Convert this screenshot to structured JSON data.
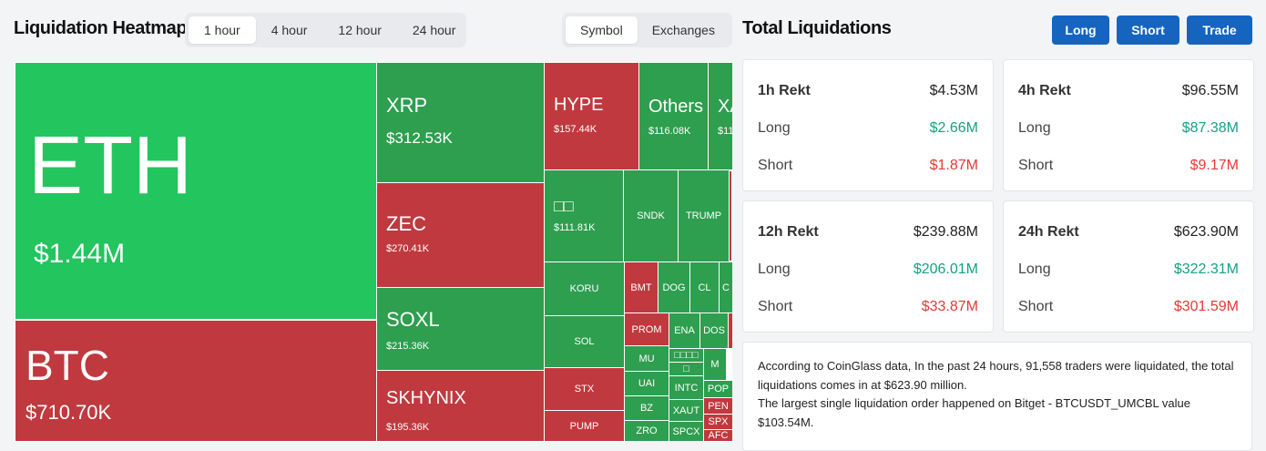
{
  "heatmap": {
    "title": "Liquidation Heatmap",
    "timeframes": [
      "1 hour",
      "4 hour",
      "12 hour",
      "24 hour"
    ],
    "active_timeframe": "1 hour",
    "views": [
      "Symbol",
      "Exchanges"
    ],
    "active_view": "Symbol",
    "colors": {
      "long_dominant": "#2e9e4f",
      "highlight_long": "#22c55e",
      "short_dominant": "#c0393e"
    },
    "tiles": [
      {
        "symbol": "ETH",
        "value": "$1.44M",
        "color": "highlight_long"
      },
      {
        "symbol": "BTC",
        "value": "$710.70K",
        "color": "short_dominant"
      },
      {
        "symbol": "XRP",
        "value": "$312.53K",
        "color": "long_dominant"
      },
      {
        "symbol": "ZEC",
        "value": "$270.41K",
        "color": "short_dominant"
      },
      {
        "symbol": "SOXL",
        "value": "$215.36K",
        "color": "long_dominant"
      },
      {
        "symbol": "SKHYNIX",
        "value": "$195.36K",
        "color": "short_dominant"
      },
      {
        "symbol": "HYPE",
        "value": "$157.44K",
        "color": "short_dominant"
      },
      {
        "symbol": "Others",
        "value": "$116.08K",
        "color": "long_dominant"
      },
      {
        "symbol": "XA",
        "value": "$11",
        "color": "long_dominant"
      },
      {
        "symbol": "",
        "value": "",
        "color": "short_dominant"
      },
      {
        "symbol": "□□",
        "value": "$111.81K",
        "color": "long_dominant"
      },
      {
        "symbol": "SNDK",
        "value": "",
        "color": "long_dominant"
      },
      {
        "symbol": "TRUMP",
        "value": "",
        "color": "long_dominant"
      },
      {
        "symbol": "KORU",
        "value": "",
        "color": "long_dominant"
      },
      {
        "symbol": "BMT",
        "value": "",
        "color": "short_dominant"
      },
      {
        "symbol": "DOG",
        "value": "",
        "color": "long_dominant"
      },
      {
        "symbol": "CL",
        "value": "",
        "color": "long_dominant"
      },
      {
        "symbol": "C",
        "value": "",
        "color": "long_dominant"
      },
      {
        "symbol": "SOL",
        "value": "",
        "color": "long_dominant"
      },
      {
        "symbol": "PROM",
        "value": "",
        "color": "short_dominant"
      },
      {
        "symbol": "ENA",
        "value": "",
        "color": "long_dominant"
      },
      {
        "symbol": "DOS",
        "value": "",
        "color": "long_dominant"
      },
      {
        "symbol": "",
        "value": "",
        "color": "short_dominant"
      },
      {
        "symbol": "MU",
        "value": "",
        "color": "long_dominant"
      },
      {
        "symbol": "□□□□",
        "value": "",
        "color": "long_dominant"
      },
      {
        "symbol": "□",
        "value": "",
        "color": "long_dominant"
      },
      {
        "symbol": "M",
        "value": "",
        "color": "long_dominant"
      },
      {
        "symbol": "STX",
        "value": "",
        "color": "short_dominant"
      },
      {
        "symbol": "UAI",
        "value": "",
        "color": "long_dominant"
      },
      {
        "symbol": "INTC",
        "value": "",
        "color": "long_dominant"
      },
      {
        "symbol": "POP",
        "value": "",
        "color": "long_dominant"
      },
      {
        "symbol": "PEN",
        "value": "",
        "color": "short_dominant"
      },
      {
        "symbol": "BZ",
        "value": "",
        "color": "long_dominant"
      },
      {
        "symbol": "XAUT",
        "value": "",
        "color": "long_dominant"
      },
      {
        "symbol": "SPX",
        "value": "",
        "color": "short_dominant"
      },
      {
        "symbol": "PUMP",
        "value": "",
        "color": "short_dominant"
      },
      {
        "symbol": "ZRO",
        "value": "",
        "color": "long_dominant"
      },
      {
        "symbol": "SPCX",
        "value": "",
        "color": "long_dominant"
      },
      {
        "symbol": "AFC",
        "value": "",
        "color": "short_dominant"
      }
    ]
  },
  "totals": {
    "title": "Total Liquidations",
    "buttons": [
      "Long",
      "Short",
      "Trade"
    ],
    "cards": [
      {
        "period": "1h Rekt",
        "total": "$4.53M",
        "long_label": "Long",
        "long": "$2.66M",
        "short_label": "Short",
        "short": "$1.87M"
      },
      {
        "period": "4h Rekt",
        "total": "$96.55M",
        "long_label": "Long",
        "long": "$87.38M",
        "short_label": "Short",
        "short": "$9.17M"
      },
      {
        "period": "12h Rekt",
        "total": "$239.88M",
        "long_label": "Long",
        "long": "$206.01M",
        "short_label": "Short",
        "short": "$33.87M"
      },
      {
        "period": "24h Rekt",
        "total": "$623.90M",
        "long_label": "Long",
        "long": "$322.31M",
        "short_label": "Short",
        "short": "$301.59M"
      }
    ],
    "description_line1": "According to CoinGlass data, In the past 24 hours, 91,558 traders were liquidated, the total liquidations comes in at $623.90 million.",
    "description_line2": "The largest single liquidation order happened on Bitget - BTCUSDT_UMCBL value $103.54M."
  }
}
